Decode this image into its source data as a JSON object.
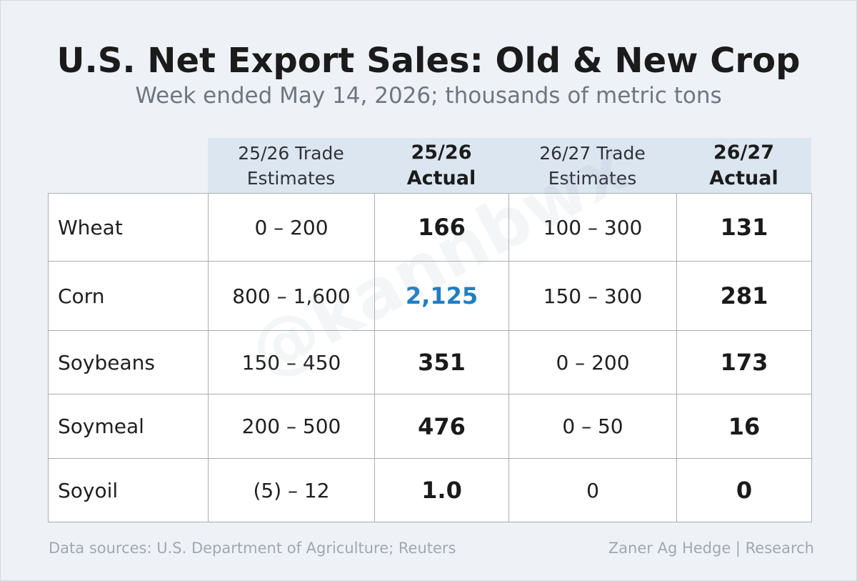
{
  "title": "U.S. Net Export Sales: Old & New Crop",
  "subtitle": "Week ended May 14, 2026; thousands of metric tons",
  "watermark": "@kannbwx",
  "footer": {
    "source": "Data sources: U.S. Department of Agriculture; Reuters",
    "credit": "Zaner Ag Hedge | Research"
  },
  "colors": {
    "background": "#eef2f7",
    "header_band": "#dce6f1",
    "highlight": "#1f7fc2"
  },
  "chart_data": {
    "type": "table",
    "columns": [
      {
        "line1": "25/26 Trade",
        "line2": "Estimates",
        "bold": false
      },
      {
        "line1": "25/26",
        "line2": "Actual",
        "bold": true
      },
      {
        "line1": "26/27 Trade",
        "line2": "Estimates",
        "bold": false
      },
      {
        "line1": "26/27",
        "line2": "Actual",
        "bold": true
      }
    ],
    "rows": [
      {
        "label": "Wheat",
        "est_2526": "0 – 200",
        "act_2526": "166",
        "est_2627": "100 – 300",
        "act_2627": "131",
        "highlight": false
      },
      {
        "label": "Corn",
        "est_2526": "800 – 1,600",
        "act_2526": "2,125",
        "est_2627": "150 – 300",
        "act_2627": "281",
        "highlight": true
      },
      {
        "label": "Soybeans",
        "est_2526": "150 – 450",
        "act_2526": "351",
        "est_2627": "0 – 200",
        "act_2627": "173",
        "highlight": false
      },
      {
        "label": "Soymeal",
        "est_2526": "200 – 500",
        "act_2526": "476",
        "est_2627": "0 – 50",
        "act_2627": "16",
        "highlight": false
      },
      {
        "label": "Soyoil",
        "est_2526": "(5) – 12",
        "act_2526": "1.0",
        "est_2627": "0",
        "act_2627": "0",
        "highlight": false
      }
    ]
  }
}
